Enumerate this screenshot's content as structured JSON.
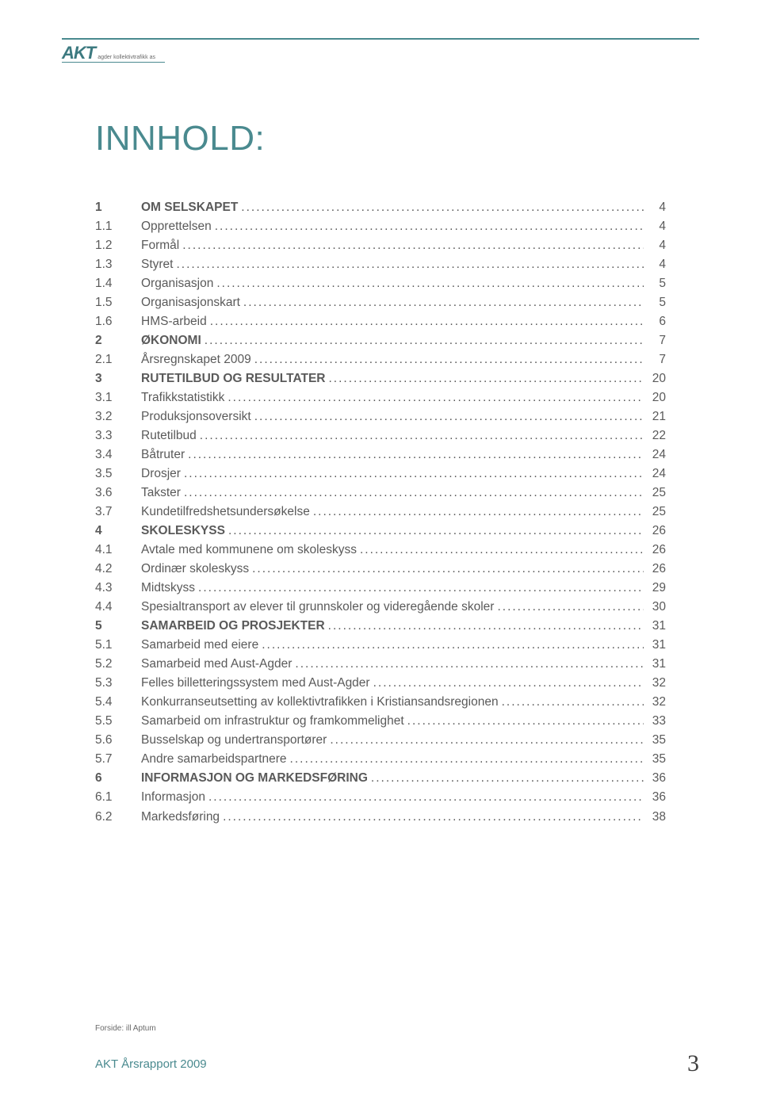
{
  "logo": {
    "mark": "AKT",
    "sub": "agder kollektivtrafikk as"
  },
  "title": "INNHOLD:",
  "colors": {
    "accent": "#4a8a8f",
    "text": "#5a5a5a",
    "background": "#ffffff"
  },
  "toc": [
    {
      "num": "1",
      "label": "OM SELSKAPET",
      "page": "4",
      "level": 1
    },
    {
      "num": "1.1",
      "label": "Opprettelsen",
      "page": "4",
      "level": 2
    },
    {
      "num": "1.2",
      "label": "Formål",
      "page": "4",
      "level": 2
    },
    {
      "num": "1.3",
      "label": "Styret",
      "page": "4",
      "level": 2
    },
    {
      "num": "1.4",
      "label": "Organisasjon",
      "page": "5",
      "level": 2
    },
    {
      "num": "1.5",
      "label": "Organisasjonskart",
      "page": "5",
      "level": 2
    },
    {
      "num": "1.6",
      "label": "HMS-arbeid",
      "page": "6",
      "level": 2
    },
    {
      "num": "2",
      "label": "ØKONOMI",
      "page": "7",
      "level": 1
    },
    {
      "num": "2.1",
      "label": "Årsregnskapet 2009",
      "page": "7",
      "level": 2
    },
    {
      "num": "3",
      "label": "RUTETILBUD OG RESULTATER",
      "page": "20",
      "level": 1
    },
    {
      "num": "3.1",
      "label": "Trafikkstatistikk",
      "page": "20",
      "level": 2
    },
    {
      "num": "3.2",
      "label": "Produksjonsoversikt",
      "page": "21",
      "level": 2
    },
    {
      "num": "3.3",
      "label": "Rutetilbud",
      "page": "22",
      "level": 2
    },
    {
      "num": "3.4",
      "label": "Båtruter",
      "page": "24",
      "level": 2
    },
    {
      "num": "3.5",
      "label": "Drosjer",
      "page": "24",
      "level": 2
    },
    {
      "num": "3.6",
      "label": "Takster",
      "page": "25",
      "level": 2
    },
    {
      "num": "3.7",
      "label": "Kundetilfredshetsundersøkelse",
      "page": "25",
      "level": 2
    },
    {
      "num": "4",
      "label": "SKOLESKYSS",
      "page": "26",
      "level": 1
    },
    {
      "num": "4.1",
      "label": "Avtale med kommunene om skoleskyss",
      "page": "26",
      "level": 2
    },
    {
      "num": "4.2",
      "label": "Ordinær skoleskyss",
      "page": "26",
      "level": 2
    },
    {
      "num": "4.3",
      "label": "Midtskyss",
      "page": "29",
      "level": 2
    },
    {
      "num": "4.4",
      "label": "Spesialtransport av elever til grunnskoler og videregående skoler",
      "page": "30",
      "level": 2
    },
    {
      "num": "5",
      "label": "SAMARBEID OG PROSJEKTER",
      "page": "31",
      "level": 1
    },
    {
      "num": "5.1",
      "label": "Samarbeid med eiere",
      "page": "31",
      "level": 2
    },
    {
      "num": "5.2",
      "label": "Samarbeid med Aust-Agder",
      "page": "31",
      "level": 2
    },
    {
      "num": "5.3",
      "label": "Felles billetteringssystem med Aust-Agder",
      "page": "32",
      "level": 2
    },
    {
      "num": "5.4",
      "label": "Konkurranseutsetting av kollektivtrafikken i Kristiansandsregionen",
      "page": "32",
      "level": 2
    },
    {
      "num": "5.5",
      "label": "Samarbeid om infrastruktur og framkommelighet",
      "page": "33",
      "level": 2
    },
    {
      "num": "5.6",
      "label": "Busselskap og undertransportører",
      "page": "35",
      "level": 2
    },
    {
      "num": "5.7",
      "label": "Andre samarbeidspartnere",
      "page": "35",
      "level": 2
    },
    {
      "num": "6",
      "label": "INFORMASJON OG MARKEDSFØRING",
      "page": "36",
      "level": 1
    },
    {
      "num": "6.1",
      "label": "Informasjon",
      "page": "36",
      "level": 2
    },
    {
      "num": "6.2",
      "label": "Markedsføring",
      "page": "38",
      "level": 2
    }
  ],
  "footer": {
    "credit": "Forside: ill Aptum",
    "report": "AKT Årsrapport 2009",
    "page_number": "3"
  }
}
